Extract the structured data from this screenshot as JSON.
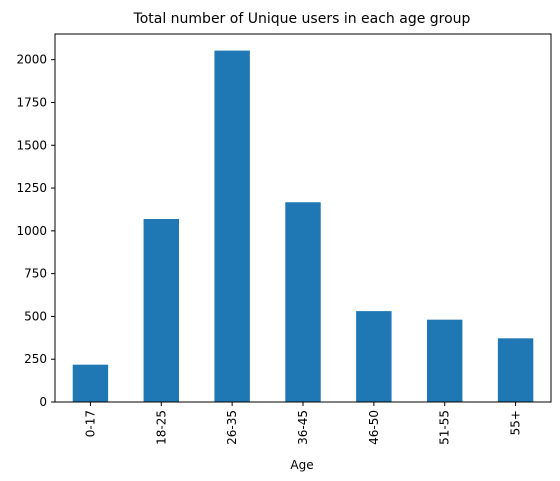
{
  "chart_data": {
    "type": "bar",
    "title": "Total number of Unique users in each age group",
    "xlabel": "Age",
    "ylabel": "",
    "categories": [
      "0-17",
      "18-25",
      "26-35",
      "36-45",
      "46-50",
      "51-55",
      "55+"
    ],
    "values": [
      218,
      1069,
      2053,
      1167,
      531,
      481,
      372
    ],
    "ylim": [
      0,
      2150
    ],
    "yticks": [
      0,
      250,
      500,
      750,
      1000,
      1250,
      1500,
      1750,
      2000
    ],
    "ytick_labels": [
      "0",
      "250",
      "500",
      "750",
      "1000",
      "1250",
      "1500",
      "1750",
      "2000"
    ],
    "grid": false,
    "legend": "none",
    "xtick_rotation": "vertical",
    "bar_color": "#1f77b4"
  }
}
